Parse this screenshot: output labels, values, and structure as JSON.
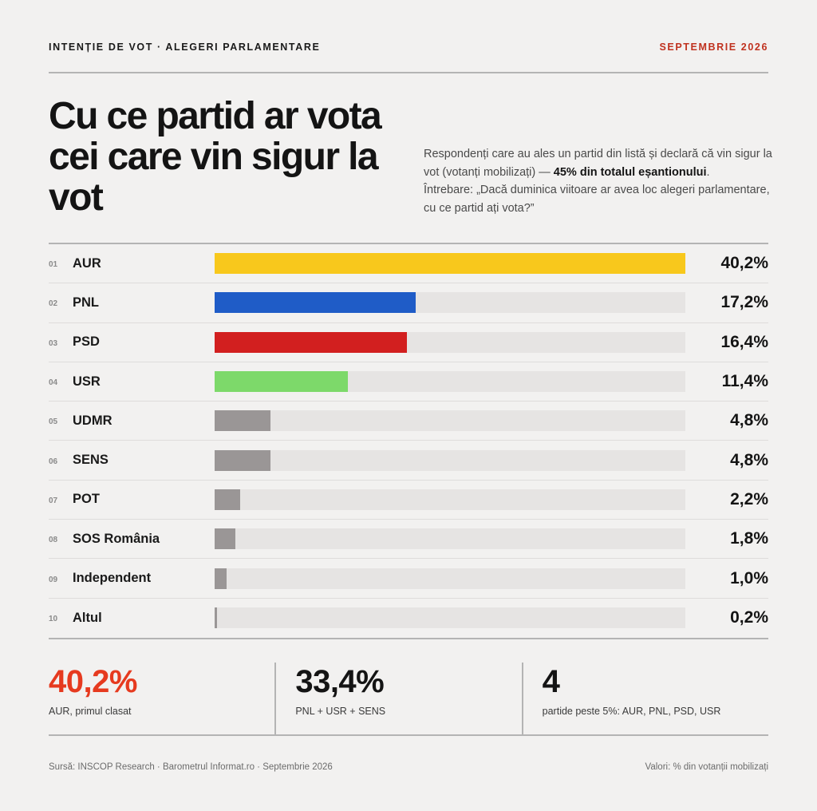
{
  "header": {
    "kicker": "INTENȚIE DE VOT · ALEGERI PARLAMENTARE",
    "date": "SEPTEMBRIE 2026"
  },
  "headline": "Cu ce partid ar vota cei care vin sigur la vot",
  "intro": {
    "text_before": "Respondenți care au ales un partid din listă și declară că vin sigur la vot (votanți mobilizați) — ",
    "highlight": "45% din totalul eșantionului",
    "text_after": ".",
    "question": "Întrebare: „Dacă duminica viitoare ar avea loc alegeri parlamentare, cu ce partid ați vota?”"
  },
  "colors": {
    "accent_red": "#e63a1f",
    "track": "#e6e4e3",
    "other": "#9a9696"
  },
  "chart_data": {
    "type": "bar",
    "orientation": "horizontal",
    "title": "Cu ce partid ar vota cei care vin sigur la vot",
    "xlim": [
      0,
      40.2
    ],
    "rows": [
      {
        "rank": "01",
        "party": "AUR",
        "value": 40.2,
        "label": "40,2%",
        "color": "#f8c81c"
      },
      {
        "rank": "02",
        "party": "PNL",
        "value": 17.2,
        "label": "17,2%",
        "color": "#1f5cc7"
      },
      {
        "rank": "03",
        "party": "PSD",
        "value": 16.4,
        "label": "16,4%",
        "color": "#d21f1f"
      },
      {
        "rank": "04",
        "party": "USR",
        "value": 11.4,
        "label": "11,4%",
        "color": "#7dd96a"
      },
      {
        "rank": "05",
        "party": "UDMR",
        "value": 4.8,
        "label": "4,8%",
        "color": "#9a9696"
      },
      {
        "rank": "06",
        "party": "SENS",
        "value": 4.8,
        "label": "4,8%",
        "color": "#9a9696"
      },
      {
        "rank": "07",
        "party": "POT",
        "value": 2.2,
        "label": "2,2%",
        "color": "#9a9696"
      },
      {
        "rank": "08",
        "party": "SOS România",
        "value": 1.8,
        "label": "1,8%",
        "color": "#9a9696"
      },
      {
        "rank": "09",
        "party": "Independent",
        "value": 1.0,
        "label": "1,0%",
        "color": "#9a9696"
      },
      {
        "rank": "10",
        "party": "Altul",
        "value": 0.2,
        "label": "0,2%",
        "color": "#9a9696"
      }
    ]
  },
  "stats": [
    {
      "value": "40,2%",
      "label": "AUR, primul clasat",
      "color": "#e63a1f"
    },
    {
      "value": "33,4%",
      "label": "PNL + USR + SENS",
      "color": "#141414"
    },
    {
      "value": "4",
      "label": "partide peste 5%: AUR, PNL, PSD, USR",
      "color": "#141414"
    }
  ],
  "footer": {
    "source": "Sursă: INSCOP Research · Barometrul Informat.ro · Septembrie 2026",
    "note": "Valori: % din votanții mobilizați"
  }
}
